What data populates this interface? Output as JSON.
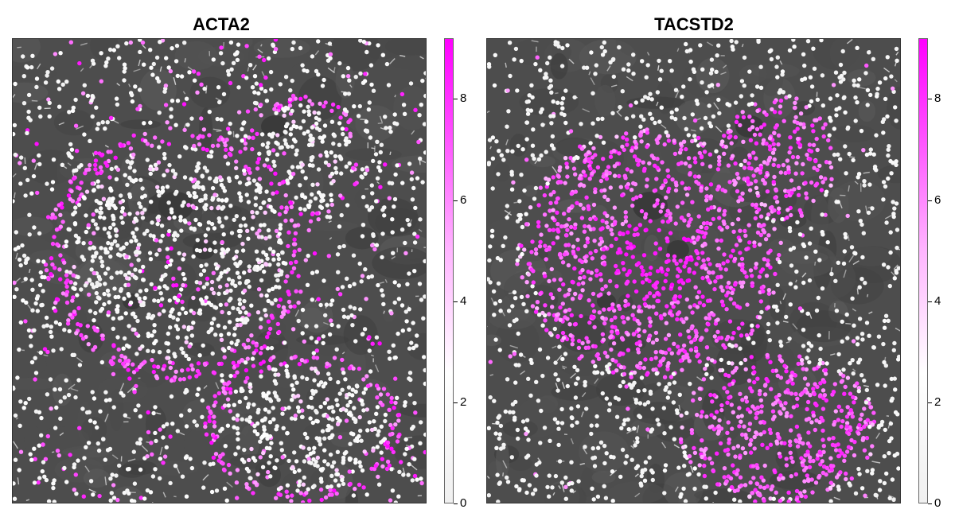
{
  "chart_data": [
    {
      "type": "scatter",
      "title": "ACTA2",
      "xlabel": "",
      "ylabel": "",
      "colorbar": {
        "min": 0,
        "max": 9.2,
        "ticks": [
          0,
          2,
          4,
          6,
          8
        ],
        "low_color": "#f0f0f0",
        "high_color": "#ff00ff"
      },
      "background": "grayscale tissue image",
      "pattern": "high expression at edges of tissue regions and scattered stroma; low inside central regions"
    },
    {
      "type": "scatter",
      "title": "TACSTD2",
      "xlabel": "",
      "ylabel": "",
      "colorbar": {
        "min": 0,
        "max": 9.2,
        "ticks": [
          0,
          2,
          4,
          6,
          8
        ],
        "low_color": "#f0f0f0",
        "high_color": "#ff00ff"
      },
      "background": "grayscale tissue image",
      "pattern": "high expression throughout central epithelial regions; low in surrounding stroma"
    }
  ]
}
